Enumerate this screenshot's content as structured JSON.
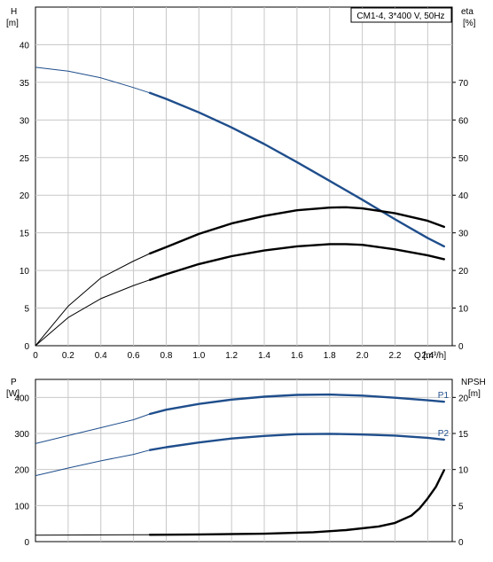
{
  "chart_data": [
    {
      "type": "line",
      "title": "CM1-4, 3*400 V, 50Hz",
      "y_left_label": "H",
      "y_left_unit": "[m]",
      "y_right_label": "eta",
      "y_right_unit": "[%]",
      "x_label": "Q [m³/h]",
      "xlim": [
        0,
        2.55
      ],
      "ylim_left": [
        0,
        45
      ],
      "ylim_right": [
        0,
        90
      ],
      "grid": true,
      "x_ticks": [
        "0",
        "0.2",
        "0.4",
        "0.6",
        "0.8",
        "1.0",
        "1.2",
        "1.4",
        "1.6",
        "1.8",
        "2.0",
        "2.2",
        "2.4"
      ],
      "y_left_ticks": [
        "0",
        "5",
        "10",
        "15",
        "20",
        "25",
        "30",
        "35",
        "40"
      ],
      "y_right_ticks": [
        "0",
        "10",
        "20",
        "30",
        "40",
        "50",
        "60",
        "70"
      ],
      "series": [
        {
          "axis": "left",
          "color": "#1f4e8c",
          "duty_range": [
            0.7,
            2.5
          ],
          "x": [
            0,
            0.2,
            0.4,
            0.6,
            0.7,
            0.8,
            1.0,
            1.2,
            1.4,
            1.6,
            1.8,
            2.0,
            2.2,
            2.4,
            2.5
          ],
          "y": [
            37,
            36.5,
            35.6,
            34.3,
            33.6,
            32.8,
            31.0,
            29.0,
            26.8,
            24.4,
            21.9,
            19.4,
            16.8,
            14.3,
            13.2
          ]
        },
        {
          "axis": "right",
          "color": "#000000",
          "duty_range": [
            0.7,
            2.5
          ],
          "x": [
            0,
            0.2,
            0.4,
            0.6,
            0.7,
            0.8,
            1.0,
            1.2,
            1.4,
            1.6,
            1.8,
            1.9,
            2.0,
            2.2,
            2.4,
            2.5
          ],
          "y": [
            0,
            10.5,
            18.0,
            22.5,
            24.5,
            26.2,
            29.7,
            32.5,
            34.5,
            36.0,
            36.7,
            36.8,
            36.5,
            35.2,
            33.2,
            31.6
          ]
        },
        {
          "axis": "right",
          "color": "#000000",
          "duty_range": [
            0.7,
            2.5
          ],
          "x": [
            0,
            0.2,
            0.4,
            0.6,
            0.7,
            0.8,
            1.0,
            1.2,
            1.4,
            1.6,
            1.8,
            1.9,
            2.0,
            2.2,
            2.4,
            2.5
          ],
          "y": [
            0,
            7.5,
            12.5,
            16.0,
            17.5,
            19.0,
            21.7,
            23.8,
            25.3,
            26.4,
            27.0,
            27.0,
            26.8,
            25.6,
            24.0,
            23.0
          ]
        }
      ]
    },
    {
      "type": "line",
      "y_left_label": "P",
      "y_left_unit": "[W]",
      "y_right_label": "NPSH",
      "y_right_unit": "[m]",
      "xlim": [
        0,
        2.55
      ],
      "ylim_left": [
        0,
        450
      ],
      "ylim_right": [
        0,
        22.5
      ],
      "grid": true,
      "y_left_ticks": [
        "0",
        "100",
        "200",
        "300",
        "400"
      ],
      "y_right_ticks": [
        "0",
        "5",
        "10",
        "15",
        "20"
      ],
      "series": [
        {
          "name": "P1",
          "axis": "left",
          "color": "#1f4e8c",
          "duty_range": [
            0.7,
            2.5
          ],
          "x": [
            0,
            0.2,
            0.4,
            0.6,
            0.7,
            0.8,
            1.0,
            1.2,
            1.4,
            1.6,
            1.8,
            2.0,
            2.2,
            2.4,
            2.5
          ],
          "y": [
            272,
            294,
            316,
            338,
            354,
            366,
            382,
            394,
            402,
            407,
            408,
            405,
            399,
            392,
            388
          ]
        },
        {
          "name": "P2",
          "axis": "left",
          "color": "#1f4e8c",
          "duty_range": [
            0.7,
            2.5
          ],
          "x": [
            0,
            0.2,
            0.4,
            0.6,
            0.7,
            0.8,
            1.0,
            1.2,
            1.4,
            1.6,
            1.8,
            2.0,
            2.2,
            2.4,
            2.5
          ],
          "y": [
            183,
            204,
            224,
            242,
            254,
            262,
            275,
            286,
            293,
            298,
            299,
            297,
            294,
            288,
            283
          ]
        },
        {
          "axis": "right",
          "color": "#000000",
          "duty_range": [
            0.7,
            2.5
          ],
          "x": [
            0,
            0.7,
            1.0,
            1.4,
            1.7,
            1.9,
            2.1,
            2.2,
            2.3,
            2.35,
            2.4,
            2.45,
            2.5
          ],
          "y": [
            0.9,
            0.95,
            1.0,
            1.1,
            1.3,
            1.6,
            2.1,
            2.6,
            3.6,
            4.6,
            6.0,
            7.6,
            9.9
          ]
        }
      ]
    }
  ]
}
